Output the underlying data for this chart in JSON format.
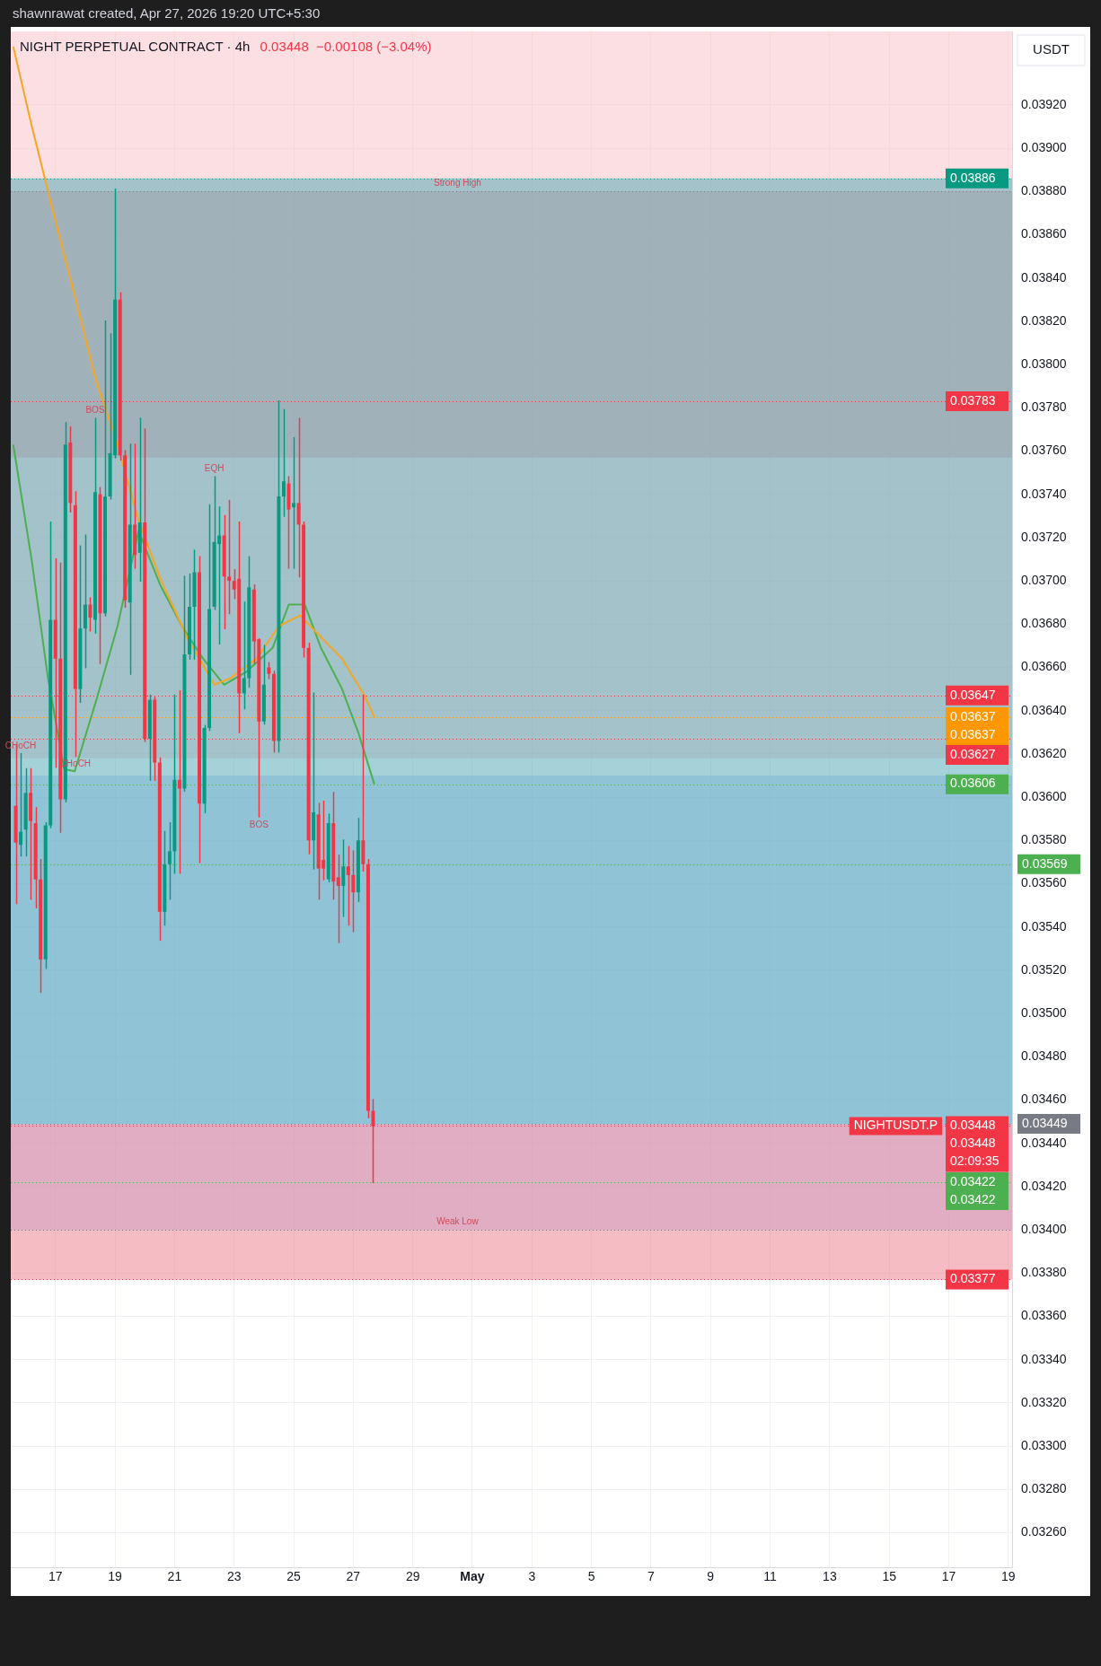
{
  "chart_data": {
    "type": "candlestick",
    "title": "NIGHT PERPETUAL CONTRACT · 4h",
    "subtitle": "0.03448  −0.00108 (−3.04%)",
    "ylabel": "USDT",
    "annotations": [
      "shawnrawat created, Apr 27, 2026 19:20 UTC+5:30",
      {
        "text": "Strong High",
        "x": "2026-04-30T12:00",
        "y": 0.0388
      },
      {
        "text": "Weak Low",
        "x": "2026-04-30T12:00",
        "y": 0.034
      },
      {
        "text": "BOS",
        "x": "2026-04-18T08:00",
        "y": 0.03775
      },
      {
        "text": "EQH",
        "x": "2026-04-22T08:00",
        "y": 0.03748
      },
      {
        "text": "CHoCH",
        "x": "2026-04-15T20:00",
        "y": 0.0362
      },
      {
        "text": "CHoCH",
        "x": "2026-04-17T16:00",
        "y": 0.03619
      },
      {
        "text": "BOS",
        "x": "2026-04-23T20:00",
        "y": 0.03591
      },
      {
        "text": "NIGHTUSDT.P",
        "y": 0.03448
      }
    ],
    "x": [
      "2026-04-15T16:00",
      "2026-04-15T20:00",
      "2026-04-16T00:00",
      "2026-04-16T04:00",
      "2026-04-16T08:00",
      "2026-04-16T12:00",
      "2026-04-16T16:00",
      "2026-04-16T20:00",
      "2026-04-17T00:00",
      "2026-04-17T04:00",
      "2026-04-17T08:00",
      "2026-04-17T12:00",
      "2026-04-17T16:00",
      "2026-04-17T20:00",
      "2026-04-18T00:00",
      "2026-04-18T04:00",
      "2026-04-18T08:00",
      "2026-04-18T12:00",
      "2026-04-18T16:00",
      "2026-04-18T20:00",
      "2026-04-19T00:00",
      "2026-04-19T04:00",
      "2026-04-19T08:00",
      "2026-04-19T12:00",
      "2026-04-19T16:00",
      "2026-04-19T20:00",
      "2026-04-20T00:00",
      "2026-04-20T04:00",
      "2026-04-20T08:00",
      "2026-04-20T12:00",
      "2026-04-20T16:00",
      "2026-04-20T20:00",
      "2026-04-21T00:00",
      "2026-04-21T04:00",
      "2026-04-21T08:00",
      "2026-04-21T12:00",
      "2026-04-21T16:00",
      "2026-04-21T20:00",
      "2026-04-22T00:00",
      "2026-04-22T04:00",
      "2026-04-22T08:00",
      "2026-04-22T12:00",
      "2026-04-22T16:00",
      "2026-04-22T20:00",
      "2026-04-23T00:00",
      "2026-04-23T04:00",
      "2026-04-23T08:00",
      "2026-04-23T12:00",
      "2026-04-23T16:00",
      "2026-04-23T20:00",
      "2026-04-24T00:00",
      "2026-04-24T04:00",
      "2026-04-24T08:00",
      "2026-04-24T12:00",
      "2026-04-24T16:00",
      "2026-04-24T20:00",
      "2026-04-25T00:00",
      "2026-04-25T04:00",
      "2026-04-25T08:00",
      "2026-04-25T12:00",
      "2026-04-25T16:00",
      "2026-04-25T20:00",
      "2026-04-26T00:00",
      "2026-04-26T04:00",
      "2026-04-26T08:00",
      "2026-04-26T12:00",
      "2026-04-26T16:00",
      "2026-04-26T20:00",
      "2026-04-27T00:00",
      "2026-04-27T04:00",
      "2026-04-27T08:00",
      "2026-04-27T12:00",
      "2026-04-27T16:00"
    ],
    "ohlc": [
      [
        0.03596,
        0.03624,
        0.03551,
        0.03579
      ],
      [
        0.03578,
        0.0362,
        0.03573,
        0.03584
      ],
      [
        0.03585,
        0.03613,
        0.03573,
        0.03602
      ],
      [
        0.03602,
        0.03613,
        0.03553,
        0.03589
      ],
      [
        0.03588,
        0.03595,
        0.03549,
        0.03562
      ],
      [
        0.03562,
        0.03571,
        0.0351,
        0.03525
      ],
      [
        0.03525,
        0.03588,
        0.03521,
        0.03587
      ],
      [
        0.03587,
        0.03727,
        0.03586,
        0.03682
      ],
      [
        0.03682,
        0.0371,
        0.03614,
        0.03664
      ],
      [
        0.03664,
        0.03708,
        0.03584,
        0.03599
      ],
      [
        0.03599,
        0.03773,
        0.03598,
        0.03763
      ],
      [
        0.03764,
        0.03771,
        0.03732,
        0.03736
      ],
      [
        0.03735,
        0.03741,
        0.03619,
        0.0365
      ],
      [
        0.0365,
        0.03716,
        0.03644,
        0.03678
      ],
      [
        0.03678,
        0.03721,
        0.0366,
        0.03689
      ],
      [
        0.03689,
        0.03692,
        0.03677,
        0.03683
      ],
      [
        0.03682,
        0.03775,
        0.03676,
        0.03741
      ],
      [
        0.0374,
        0.03743,
        0.03662,
        0.03685
      ],
      [
        0.03685,
        0.0382,
        0.03684,
        0.03739
      ],
      [
        0.03739,
        0.03814,
        0.03738,
        0.03759
      ],
      [
        0.03758,
        0.03881,
        0.03757,
        0.0383
      ],
      [
        0.0383,
        0.03833,
        0.03756,
        0.03758
      ],
      [
        0.03758,
        0.0376,
        0.03688,
        0.03691
      ],
      [
        0.0369,
        0.03763,
        0.03657,
        0.03726
      ],
      [
        0.03726,
        0.03763,
        0.03706,
        0.03712
      ],
      [
        0.03713,
        0.03775,
        0.037,
        0.03727
      ],
      [
        0.03727,
        0.0377,
        0.03626,
        0.03627
      ],
      [
        0.03627,
        0.03647,
        0.03608,
        0.03645
      ],
      [
        0.03645,
        0.03646,
        0.03608,
        0.03616
      ],
      [
        0.03616,
        0.03618,
        0.03534,
        0.03547
      ],
      [
        0.03547,
        0.03584,
        0.03541,
        0.03569
      ],
      [
        0.03569,
        0.03588,
        0.03553,
        0.03575
      ],
      [
        0.03575,
        0.03647,
        0.03565,
        0.03608
      ],
      [
        0.03608,
        0.03649,
        0.03565,
        0.03604
      ],
      [
        0.03604,
        0.03702,
        0.03603,
        0.03666
      ],
      [
        0.03666,
        0.03703,
        0.03664,
        0.03688
      ],
      [
        0.03688,
        0.03714,
        0.03664,
        0.03704
      ],
      [
        0.03704,
        0.03711,
        0.0357,
        0.03597
      ],
      [
        0.03597,
        0.03633,
        0.03593,
        0.03632
      ],
      [
        0.03632,
        0.03735,
        0.03631,
        0.03687
      ],
      [
        0.03688,
        0.03748,
        0.03687,
        0.03718
      ],
      [
        0.03717,
        0.03734,
        0.03671,
        0.03721
      ],
      [
        0.03721,
        0.0373,
        0.03678,
        0.03702
      ],
      [
        0.03702,
        0.03737,
        0.03685,
        0.037
      ],
      [
        0.037,
        0.03705,
        0.03692,
        0.03696
      ],
      [
        0.03701,
        0.03727,
        0.0363,
        0.03648
      ],
      [
        0.03648,
        0.0369,
        0.03641,
        0.03655
      ],
      [
        0.03655,
        0.03711,
        0.03651,
        0.03697
      ],
      [
        0.03696,
        0.03698,
        0.03662,
        0.03672
      ],
      [
        0.03673,
        0.03673,
        0.03591,
        0.03635
      ],
      [
        0.03635,
        0.0367,
        0.03634,
        0.03652
      ],
      [
        0.0366,
        0.03662,
        0.03655,
        0.03657
      ],
      [
        0.03657,
        0.03658,
        0.03621,
        0.03626
      ],
      [
        0.03626,
        0.03783,
        0.03621,
        0.03739
      ],
      [
        0.03739,
        0.03779,
        0.0373,
        0.03746
      ],
      [
        0.03745,
        0.03748,
        0.03706,
        0.03733
      ],
      [
        0.03734,
        0.03766,
        0.03706,
        0.03736
      ],
      [
        0.03736,
        0.03775,
        0.03702,
        0.03726
      ],
      [
        0.03726,
        0.03727,
        0.03665,
        0.03669
      ],
      [
        0.03669,
        0.03671,
        0.03574,
        0.0358
      ],
      [
        0.0358,
        0.03648,
        0.03567,
        0.03593
      ],
      [
        0.03592,
        0.03597,
        0.03553,
        0.03567
      ],
      [
        0.03571,
        0.03598,
        0.03562,
        0.03567
      ],
      [
        0.03562,
        0.03592,
        0.03561,
        0.03588
      ],
      [
        0.03588,
        0.03602,
        0.03553,
        0.03561
      ],
      [
        0.03563,
        0.03573,
        0.03533,
        0.03559
      ],
      [
        0.03559,
        0.0358,
        0.03545,
        0.03568
      ],
      [
        0.03568,
        0.03577,
        0.03541,
        0.03564
      ],
      [
        0.03564,
        0.03575,
        0.03538,
        0.03556
      ],
      [
        0.03556,
        0.0359,
        0.03552,
        0.0358
      ],
      [
        0.0358,
        0.03647,
        0.03566,
        0.03569
      ],
      [
        0.03569,
        0.03571,
        0.03452,
        0.03455
      ],
      [
        0.03455,
        0.0346,
        0.03422,
        0.03448
      ]
    ],
    "colors": [
      "#f23645",
      "#089981",
      "#089981",
      "#f23645",
      "#f23645",
      "#f23645",
      "#089981",
      "#089981",
      "#f23645",
      "#f23645",
      "#089981",
      "#f23645",
      "#f23645",
      "#089981",
      "#089981",
      "#f23645",
      "#089981",
      "#f23645",
      "#089981",
      "#089981",
      "#089981",
      "#f23645",
      "#f23645",
      "#089981",
      "#f23645",
      "#089981",
      "#f23645",
      "#089981",
      "#f23645",
      "#f23645",
      "#089981",
      "#089981",
      "#089981",
      "#f23645",
      "#089981",
      "#089981",
      "#089981",
      "#f23645",
      "#089981",
      "#089981",
      "#089981",
      "#089981",
      "#f23645",
      "#f23645",
      "#f23645",
      "#f23645",
      "#089981",
      "#089981",
      "#f23645",
      "#f23645",
      "#089981",
      "#f23645",
      "#f23645",
      "#089981",
      "#089981",
      "#f23645",
      "#089981",
      "#f23645",
      "#f23645",
      "#f23645",
      "#089981",
      "#f23645",
      "#f23645",
      "#089981",
      "#f23645",
      "#f23645",
      "#089981",
      "#f23645",
      "#f23645",
      "#089981",
      "#f23645",
      "#f23645",
      "#f23645"
    ],
    "series": [
      {
        "type": "line",
        "color": "#f5a623",
        "x": [
          "2026-04-15T14:00",
          "2026-04-16T05:00",
          "2026-04-16T22:00",
          "2026-04-17T15:30",
          "2026-04-18T09:00",
          "2026-04-19T02:00",
          "2026-04-19T19:00",
          "2026-04-20T12:30",
          "2026-04-21T10:00",
          "2026-04-22T08:00",
          "2026-04-22T21:00",
          "2026-04-23T18:00",
          "2026-04-24T12:00",
          "2026-04-25T05:00",
          "2026-04-25T22:00",
          "2026-04-26T15:00",
          "2026-04-27T09:00",
          "2026-04-27T17:00"
        ],
        "values": [
          0.03947,
          0.0391,
          0.03871,
          0.03832,
          0.03792,
          0.03763,
          0.03728,
          0.03701,
          0.03674,
          0.03652,
          0.03655,
          0.03664,
          0.03679,
          0.03684,
          0.03674,
          0.03664,
          0.03647,
          0.03637
        ]
      },
      {
        "type": "line",
        "color": "#4caf50",
        "x": [
          "2026-04-15T14:00",
          "2026-04-16T05:00",
          "2026-04-16T18:00",
          "2026-04-17T07:00",
          "2026-04-17T15:30",
          "2026-04-18T09:00",
          "2026-04-19T02:00",
          "2026-04-19T19:00",
          "2026-04-20T12:30",
          "2026-04-21T06:00",
          "2026-04-21T23:00",
          "2026-04-22T16:00",
          "2026-04-23T10:00",
          "2026-04-24T07:00",
          "2026-04-24T20:00",
          "2026-04-25T09:00",
          "2026-04-25T22:00",
          "2026-04-26T15:00",
          "2026-04-27T04:00",
          "2026-04-27T17:00"
        ],
        "values": [
          0.03763,
          0.03709,
          0.03655,
          0.03613,
          0.03612,
          0.03645,
          0.03679,
          0.03723,
          0.03698,
          0.03679,
          0.03664,
          0.03652,
          0.03658,
          0.03669,
          0.03689,
          0.03689,
          0.03669,
          0.0365,
          0.0363,
          0.03606
        ]
      }
    ],
    "bands": [
      {
        "axis": "y",
        "from": 0.03618,
        "to": 0.03954,
        "color": "#f9c0c5"
      },
      {
        "axis": "y",
        "from": 0.03757,
        "to": 0.0388,
        "color": "#f29aa3"
      },
      {
        "axis": "y",
        "from": 0.034,
        "to": 0.0361,
        "color": "#aec4f8"
      },
      {
        "axis": "y",
        "from": 0.03449,
        "to": 0.03886,
        "color": "#4ca6b2"
      },
      {
        "axis": "y",
        "from": 0.03377,
        "to": 0.03449,
        "color": "#ec7a89"
      }
    ],
    "ref_lines": [
      {
        "axis": "y",
        "value": 0.0388,
        "color": "#787b86",
        "line_style": "dotted"
      },
      {
        "axis": "y",
        "value": 0.034,
        "color": "#787b86",
        "line_style": "dotted"
      },
      {
        "axis": "y",
        "value": 0.03886,
        "label": "0.03886",
        "color": "#089981",
        "line_style": "dotted"
      },
      {
        "axis": "y",
        "value": 0.03783,
        "label": "0.03783",
        "color": "#f23645",
        "line_style": "dotted"
      },
      {
        "axis": "y",
        "value": 0.03647,
        "label": "0.03647",
        "color": "#f23645",
        "line_style": "dotted"
      },
      {
        "axis": "y",
        "value": 0.03637,
        "label": "0.03637\n0.03637",
        "color": "#ff9800",
        "line_style": "dotted"
      },
      {
        "axis": "y",
        "value": 0.03627,
        "label": "0.03627",
        "color": "#f23645",
        "line_style": "dotted"
      },
      {
        "axis": "y",
        "value": 0.03606,
        "label": "0.03606",
        "color": "#4caf50",
        "line_style": "dotted"
      },
      {
        "axis": "y",
        "value": 0.03569,
        "label": "0.03569",
        "color": "#4caf50",
        "line_style": "dotted"
      },
      {
        "axis": "y",
        "value": 0.03449,
        "label": "0.03449",
        "color": "#787b86",
        "line_style": "dotted"
      },
      {
        "axis": "y",
        "value": 0.03448,
        "label": "0.03448\n0.03448\n02:09:35",
        "color": "#f23645",
        "line_style": "dotted"
      },
      {
        "axis": "y",
        "value": 0.03422,
        "label": "0.03422\n0.03422",
        "color": "#4caf50",
        "line_style": "dotted"
      },
      {
        "axis": "y",
        "value": 0.03377,
        "label": "0.03377",
        "color": "#f23645",
        "line_style": "dotted"
      }
    ],
    "xlim": [
      "2026-04-15T12:00",
      "2026-05-19T03:00"
    ],
    "xticks": [
      {
        "value": "2026-04-17",
        "label": "17"
      },
      {
        "value": "2026-04-19",
        "label": "19"
      },
      {
        "value": "2026-04-21",
        "label": "21"
      },
      {
        "value": "2026-04-23",
        "label": "23"
      },
      {
        "value": "2026-04-25",
        "label": "25"
      },
      {
        "value": "2026-04-27",
        "label": "27"
      },
      {
        "value": "2026-04-29",
        "label": "29"
      },
      {
        "value": "2026-05-01",
        "label": "May"
      },
      {
        "value": "2026-05-03",
        "label": "3"
      },
      {
        "value": "2026-05-05",
        "label": "5"
      },
      {
        "value": "2026-05-07",
        "label": "7"
      },
      {
        "value": "2026-05-09",
        "label": "9"
      },
      {
        "value": "2026-05-11",
        "label": "11"
      },
      {
        "value": "2026-05-13",
        "label": "13"
      },
      {
        "value": "2026-05-15",
        "label": "15"
      },
      {
        "value": "2026-05-17",
        "label": "17"
      },
      {
        "value": "2026-05-19",
        "label": "19"
      }
    ],
    "ylim": [
      0.03244,
      0.03954
    ],
    "yticks": [
      {
        "value": 0.0326,
        "label": "0.03260"
      },
      {
        "value": 0.0328,
        "label": "0.03280"
      },
      {
        "value": 0.033,
        "label": "0.03300"
      },
      {
        "value": 0.0332,
        "label": "0.03320"
      },
      {
        "value": 0.0334,
        "label": "0.03340"
      },
      {
        "value": 0.0336,
        "label": "0.03360"
      },
      {
        "value": 0.0338,
        "label": "0.03380"
      },
      {
        "value": 0.034,
        "label": "0.03400"
      },
      {
        "value": 0.0342,
        "label": "0.03420"
      },
      {
        "value": 0.0344,
        "label": "0.03440"
      },
      {
        "value": 0.0346,
        "label": "0.03460"
      },
      {
        "value": 0.0348,
        "label": "0.03480"
      },
      {
        "value": 0.035,
        "label": "0.03500"
      },
      {
        "value": 0.0352,
        "label": "0.03520"
      },
      {
        "value": 0.0354,
        "label": "0.03540"
      },
      {
        "value": 0.0356,
        "label": "0.03560"
      },
      {
        "value": 0.0358,
        "label": "0.03580"
      },
      {
        "value": 0.036,
        "label": "0.03600"
      },
      {
        "value": 0.0362,
        "label": "0.03620"
      },
      {
        "value": 0.0364,
        "label": "0.03640"
      },
      {
        "value": 0.0366,
        "label": "0.03660"
      },
      {
        "value": 0.0368,
        "label": "0.03680"
      },
      {
        "value": 0.037,
        "label": "0.03700"
      },
      {
        "value": 0.0372,
        "label": "0.03720"
      },
      {
        "value": 0.0374,
        "label": "0.03740"
      },
      {
        "value": 0.0376,
        "label": "0.03760"
      },
      {
        "value": 0.0378,
        "label": "0.03780"
      },
      {
        "value": 0.038,
        "label": "0.03800"
      },
      {
        "value": 0.0382,
        "label": "0.03820"
      },
      {
        "value": 0.0384,
        "label": "0.03840"
      },
      {
        "value": 0.0386,
        "label": "0.03860"
      },
      {
        "value": 0.0388,
        "label": "0.03880"
      },
      {
        "value": 0.039,
        "label": "0.03900"
      },
      {
        "value": 0.0392,
        "label": "0.03920"
      }
    ],
    "grid": true,
    "marker": "none"
  }
}
